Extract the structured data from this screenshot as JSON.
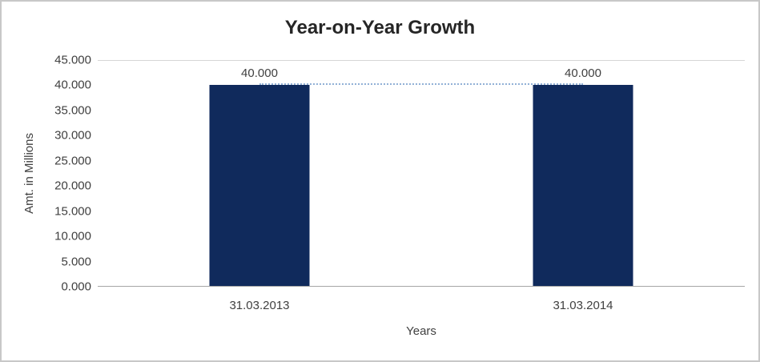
{
  "chart_data": {
    "type": "bar",
    "title": "Year-on-Year Growth",
    "xlabel": "Years",
    "ylabel": "Amt. in Millions",
    "categories": [
      "31.03.2013",
      "31.03.2014"
    ],
    "values": [
      40000,
      40000
    ],
    "data_labels": [
      "40.000",
      "40.000"
    ],
    "ylim": [
      0,
      45000
    ],
    "ytick_values": [
      0,
      5000,
      10000,
      15000,
      20000,
      25000,
      30000,
      35000,
      40000,
      45000
    ],
    "ytick_labels": [
      "0.000",
      "5.000",
      "10.000",
      "15.000",
      "20.000",
      "25.000",
      "30.000",
      "35.000",
      "40.000",
      "45.000"
    ],
    "legend": "none",
    "grid": "top-border-only",
    "connector_at_value": 40000,
    "colors": {
      "bar": "#102a5c",
      "connector": "#92b1d6",
      "title_text": "#262626",
      "axis_text": "#404040",
      "axis_line": "#a6a6a6",
      "gridline": "#d6d6d6",
      "frame_border": "#c8c8c8",
      "background": "#ffffff"
    }
  }
}
